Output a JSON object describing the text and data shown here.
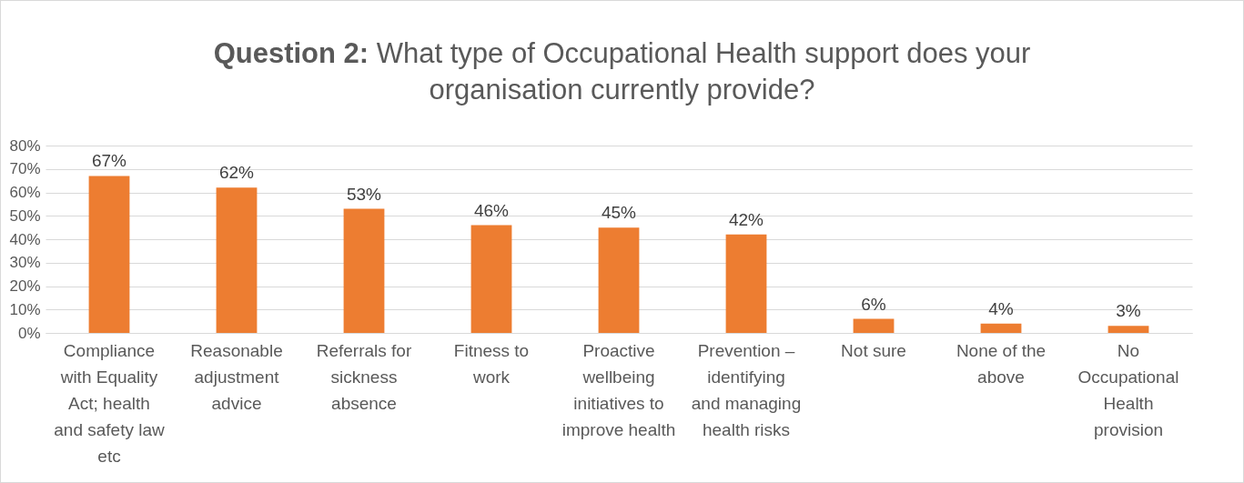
{
  "chart_data": {
    "type": "bar",
    "title": "Question 2: What type of Occupational Health support does your organisation currently provide?",
    "categories": [
      "Compliance with Equality Act; health and safety law etc",
      "Reasonable adjustment advice",
      "Referrals for sickness absence",
      "Fitness to work",
      "Proactive wellbeing initiatives to improve health",
      "Prevention – identifying and managing health risks",
      "Not sure",
      "None of the above",
      "No Occupational Health provision"
    ],
    "values": [
      67,
      62,
      53,
      46,
      45,
      42,
      6,
      4,
      3
    ],
    "value_labels": [
      "67%",
      "62%",
      "53%",
      "46%",
      "45%",
      "42%",
      "6%",
      "4%",
      "3%"
    ],
    "color": "#ed7d31",
    "ylim": [
      0,
      80
    ],
    "yticks": [
      {
        "value": 0,
        "label": "0%"
      },
      {
        "value": 10,
        "label": "10%"
      },
      {
        "value": 20,
        "label": "20%"
      },
      {
        "value": 30,
        "label": "30%"
      },
      {
        "value": 40,
        "label": "40%"
      },
      {
        "value": 50,
        "label": "50%"
      },
      {
        "value": 60,
        "label": "60%"
      },
      {
        "value": 70,
        "label": "70%"
      },
      {
        "value": 80,
        "label": "80%"
      }
    ],
    "grid": true
  }
}
